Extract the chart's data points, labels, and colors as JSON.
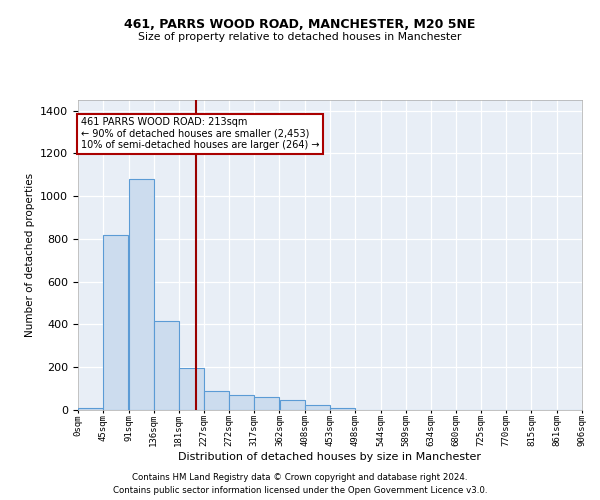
{
  "title1": "461, PARRS WOOD ROAD, MANCHESTER, M20 5NE",
  "title2": "Size of property relative to detached houses in Manchester",
  "xlabel": "Distribution of detached houses by size in Manchester",
  "ylabel": "Number of detached properties",
  "bar_color": "#ccdcee",
  "bar_edge_color": "#5b9bd5",
  "vline_x": 213,
  "vline_color": "#990000",
  "annotation_text": "461 PARRS WOOD ROAD: 213sqm\n← 90% of detached houses are smaller (2,453)\n10% of semi-detached houses are larger (264) →",
  "annotation_box_color": "#aa0000",
  "bin_edges": [
    0,
    45,
    91,
    136,
    181,
    227,
    272,
    317,
    362,
    408,
    453,
    498,
    544,
    589,
    634,
    680,
    725,
    770,
    815,
    861,
    906
  ],
  "bin_labels": [
    "0sqm",
    "45sqm",
    "91sqm",
    "136sqm",
    "181sqm",
    "227sqm",
    "272sqm",
    "317sqm",
    "362sqm",
    "408sqm",
    "453sqm",
    "498sqm",
    "544sqm",
    "589sqm",
    "634sqm",
    "680sqm",
    "725sqm",
    "770sqm",
    "815sqm",
    "861sqm",
    "906sqm"
  ],
  "bar_heights": [
    10,
    820,
    1080,
    415,
    195,
    90,
    70,
    60,
    45,
    25,
    8,
    0,
    0,
    0,
    0,
    0,
    0,
    0,
    0,
    0
  ],
  "ylim": [
    0,
    1450
  ],
  "yticks": [
    0,
    200,
    400,
    600,
    800,
    1000,
    1200,
    1400
  ],
  "background_color": "#e8eef6",
  "grid_color": "#ffffff",
  "footer1": "Contains HM Land Registry data © Crown copyright and database right 2024.",
  "footer2": "Contains public sector information licensed under the Open Government Licence v3.0."
}
